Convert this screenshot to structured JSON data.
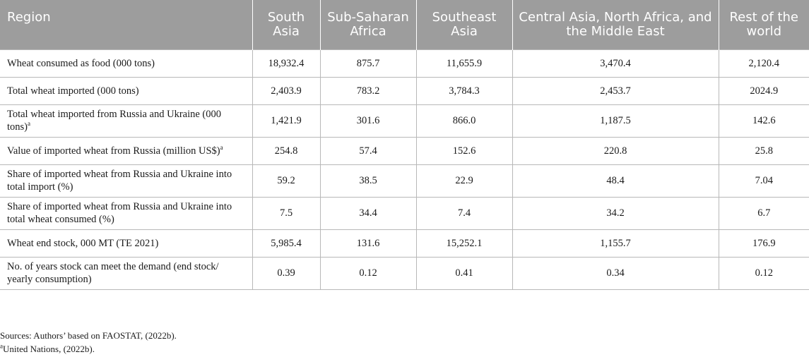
{
  "table": {
    "headers": [
      "Region",
      "South Asia",
      "Sub-Saharan Africa",
      "Southeast Asia",
      "Central Asia, North Africa, and the Middle East",
      "Rest of the world"
    ],
    "rows": [
      {
        "label": "Wheat consumed as food (000 tons)",
        "sup": "",
        "values": [
          "18,932.4",
          "875.7",
          "11,655.9",
          "3,470.4",
          "2,120.4"
        ]
      },
      {
        "label": "Total wheat imported (000 tons)",
        "sup": "",
        "values": [
          "2,403.9",
          "783.2",
          "3,784.3",
          "2,453.7",
          "2024.9"
        ]
      },
      {
        "label": "Total wheat imported from Russia and Ukraine (000 tons)",
        "sup": "a",
        "values": [
          "1,421.9",
          "301.6",
          "866.0",
          "1,187.5",
          "142.6"
        ]
      },
      {
        "label": "Value of imported wheat from Russia (million US$)",
        "sup": "a",
        "values": [
          "254.8",
          "57.4",
          "152.6",
          "220.8",
          "25.8"
        ]
      },
      {
        "label": "Share of imported wheat from Russia and Ukraine into total import (%)",
        "sup": "",
        "values": [
          "59.2",
          "38.5",
          "22.9",
          "48.4",
          "7.04"
        ]
      },
      {
        "label": "Share of imported wheat from Russia and Ukraine into total wheat consumed (%)",
        "sup": "",
        "values": [
          "7.5",
          "34.4",
          "7.4",
          "34.2",
          "6.7"
        ]
      },
      {
        "label": "Wheat end stock, 000 MT (TE 2021)",
        "sup": "",
        "values": [
          "5,985.4",
          "131.6",
          "15,252.1",
          "1,155.7",
          "176.9"
        ]
      },
      {
        "label": "No. of years stock can meet the demand (end stock/ yearly consumption)",
        "sup": "",
        "values": [
          "0.39",
          "0.12",
          "0.41",
          "0.34",
          "0.12"
        ]
      }
    ]
  },
  "notes": {
    "sources": "Sources: Authors’ based on FAOSTAT, (2022b).",
    "footnote_marker": "a",
    "footnote": "United Nations, (2022b)."
  }
}
